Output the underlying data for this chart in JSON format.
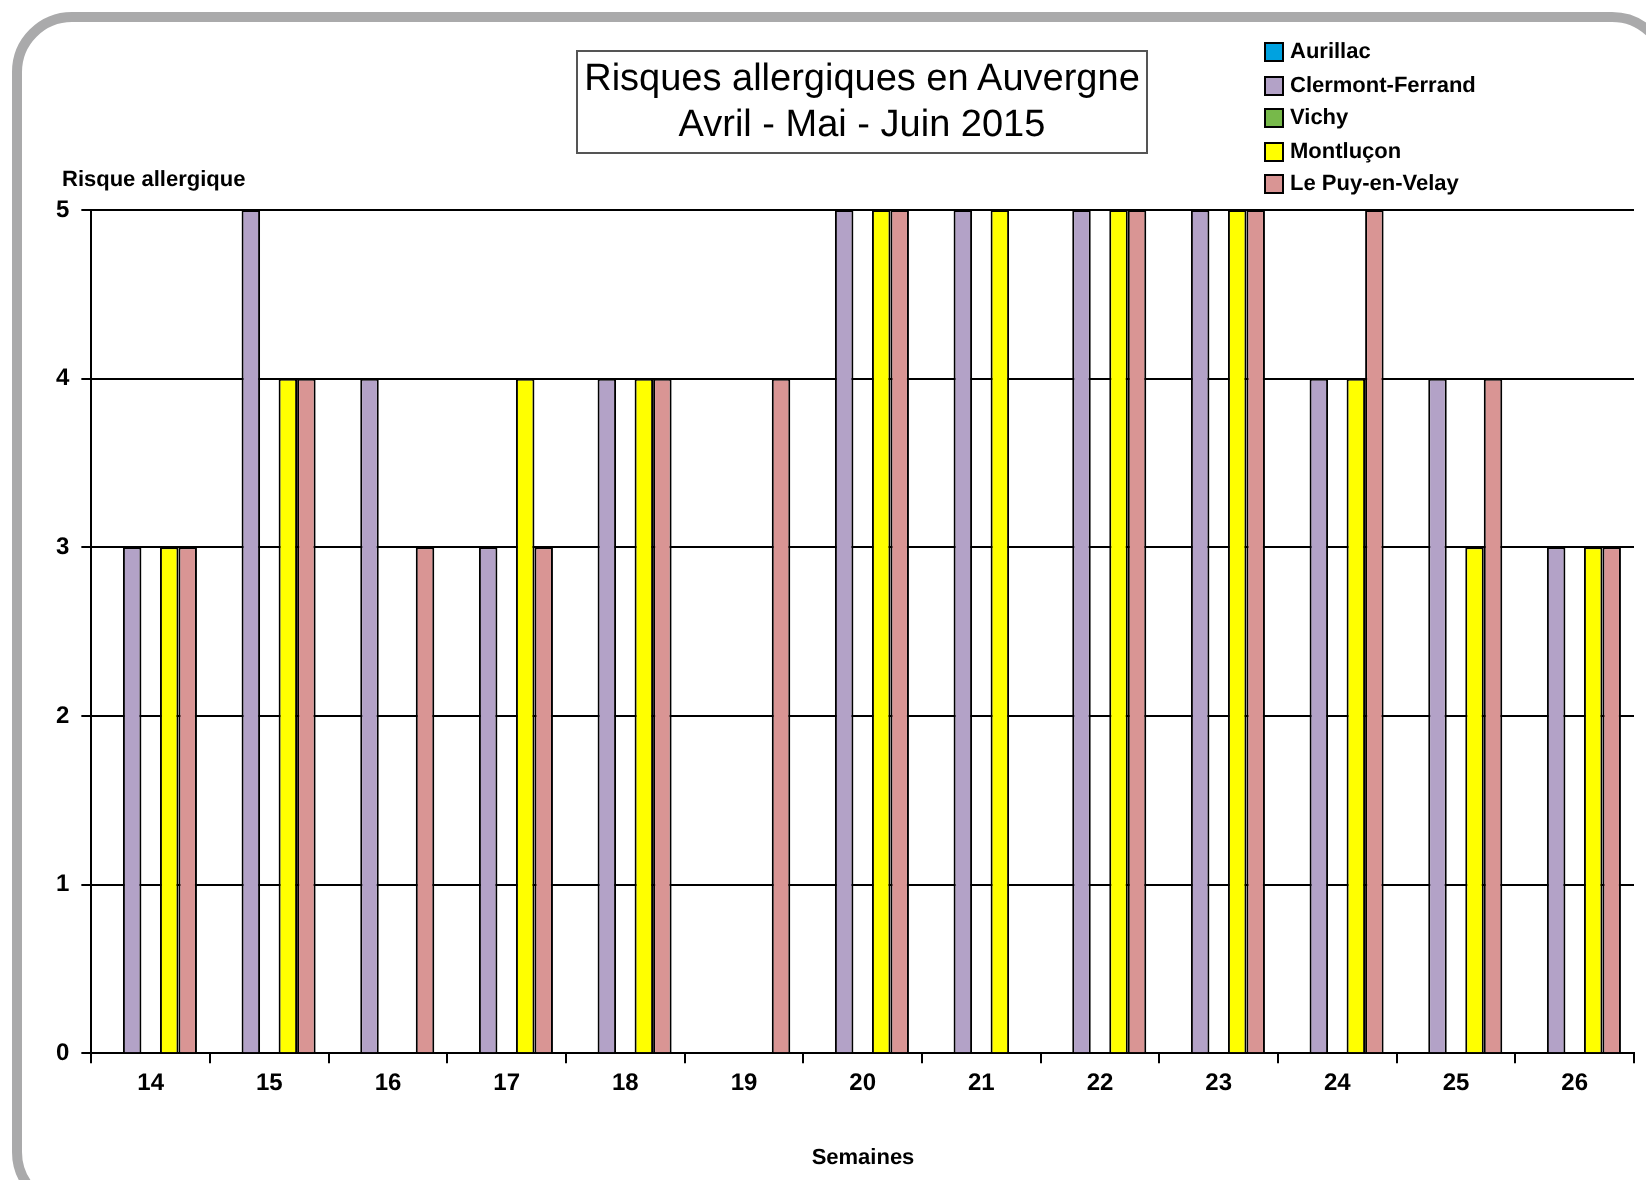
{
  "chart_data": {
    "type": "bar",
    "title": "Risques allergiques en Auvergne",
    "subtitle": "Avril - Mai - Juin 2015",
    "xlabel": "Semaines",
    "ylabel": "Risque allergique",
    "categories": [
      "14",
      "15",
      "16",
      "17",
      "18",
      "19",
      "20",
      "21",
      "22",
      "23",
      "24",
      "25",
      "26"
    ],
    "series": [
      {
        "name": "Aurillac",
        "color": "#00a2e0",
        "values": [
          null,
          null,
          null,
          null,
          null,
          null,
          null,
          null,
          null,
          null,
          null,
          null,
          null
        ]
      },
      {
        "name": "Clermont-Ferrand",
        "color": "#b3a2c7",
        "values": [
          3,
          5,
          4,
          3,
          4,
          null,
          5,
          5,
          5,
          5,
          4,
          4,
          3
        ]
      },
      {
        "name": "Vichy",
        "color": "#77b94a",
        "values": [
          null,
          null,
          null,
          null,
          null,
          null,
          null,
          null,
          null,
          null,
          null,
          null,
          null
        ]
      },
      {
        "name": "Montluçon",
        "color": "#ffff00",
        "values": [
          3,
          4,
          null,
          4,
          4,
          null,
          5,
          5,
          5,
          5,
          4,
          3,
          3
        ]
      },
      {
        "name": "Le Puy-en-Velay",
        "color": "#d99594",
        "values": [
          3,
          4,
          3,
          3,
          4,
          4,
          5,
          null,
          5,
          5,
          5,
          4,
          3
        ]
      }
    ],
    "ylim": [
      0,
      5
    ],
    "yticks": [
      0,
      1,
      2,
      3,
      4,
      5
    ],
    "grid": "y",
    "legend": "top right"
  }
}
